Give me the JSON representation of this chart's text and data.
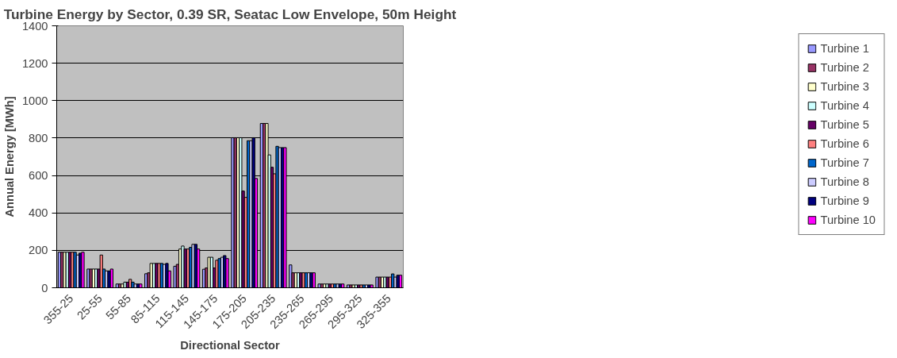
{
  "chart_data": {
    "type": "bar",
    "title": "Turbine Energy by Sector, 0.39 SR, Seatac Low Envelope, 50m Height",
    "xlabel": "Directional Sector",
    "ylabel": "Annual Energy [MWh]",
    "categories": [
      "355-25",
      "25-55",
      "55-85",
      "85-115",
      "115-145",
      "145-175",
      "175-205",
      "205-235",
      "235-265",
      "265-295",
      "295-325",
      "325-355"
    ],
    "series": [
      {
        "name": "Turbine 1",
        "color": "#9999ff",
        "values": [
          190,
          100,
          20,
          75,
          115,
          99,
          802,
          878,
          122,
          20,
          15,
          57
        ]
      },
      {
        "name": "Turbine 2",
        "color": "#993366",
        "values": [
          190,
          100,
          20,
          80,
          125,
          106,
          802,
          878,
          80,
          20,
          15,
          57
        ]
      },
      {
        "name": "Turbine 3",
        "color": "#ffffcc",
        "values": [
          190,
          100,
          20,
          130,
          207,
          163,
          802,
          878,
          80,
          20,
          15,
          57
        ]
      },
      {
        "name": "Turbine 4",
        "color": "#ccffff",
        "values": [
          190,
          100,
          30,
          130,
          223,
          163,
          802,
          710,
          80,
          20,
          15,
          57
        ]
      },
      {
        "name": "Turbine 5",
        "color": "#660066",
        "values": [
          190,
          100,
          30,
          130,
          207,
          106,
          517,
          644,
          80,
          20,
          15,
          57
        ]
      },
      {
        "name": "Turbine 6",
        "color": "#ff8080",
        "values": [
          190,
          175,
          45,
          130,
          207,
          147,
          483,
          609,
          80,
          20,
          15,
          57
        ]
      },
      {
        "name": "Turbine 7",
        "color": "#0066cc",
        "values": [
          190,
          100,
          30,
          130,
          216,
          156,
          786,
          756,
          80,
          20,
          15,
          74
        ]
      },
      {
        "name": "Turbine 8",
        "color": "#ccccff",
        "values": [
          175,
          90,
          20,
          125,
          232,
          163,
          786,
          749,
          80,
          20,
          15,
          57
        ]
      },
      {
        "name": "Turbine 9",
        "color": "#000080",
        "values": [
          185,
          90,
          20,
          130,
          232,
          172,
          802,
          749,
          80,
          20,
          15,
          67
        ]
      },
      {
        "name": "Turbine 10",
        "color": "#ff00ff",
        "values": [
          190,
          100,
          20,
          90,
          207,
          156,
          584,
          749,
          80,
          20,
          15,
          67
        ]
      }
    ],
    "ylim": [
      0,
      1400
    ],
    "yticks": [
      0,
      200,
      400,
      600,
      800,
      1000,
      1200,
      1400
    ],
    "grid": "y",
    "legend": "right"
  }
}
